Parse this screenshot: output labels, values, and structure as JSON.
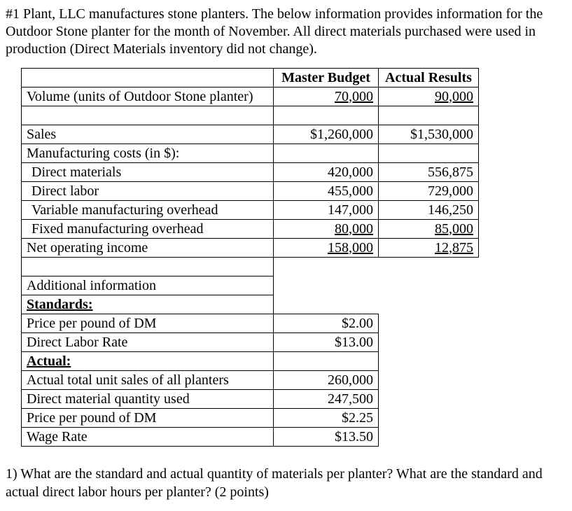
{
  "intro": "#1 Plant, LLC manufactures stone planters. The below information provides information for the Outdoor Stone planter for the month of November. All direct materials purchased were used in production (Direct Materials inventory did not change).",
  "table": {
    "master_budget_header": "Master Budget",
    "actual_results_header": "Actual Results",
    "rows": [
      {
        "label": "Volume (units of Outdoor Stone planter)",
        "budget": "70,000",
        "actual": "90,000"
      },
      {
        "label": "Sales",
        "budget": "$1,260,000",
        "actual": "$1,530,000"
      },
      {
        "label": "Manufacturing costs (in $):",
        "budget": "",
        "actual": ""
      },
      {
        "label": "Direct materials",
        "budget": "420,000",
        "actual": "556,875"
      },
      {
        "label": "Direct labor",
        "budget": "455,000",
        "actual": "729,000"
      },
      {
        "label": "Variable manufacturing overhead",
        "budget": "147,000",
        "actual": "146,250"
      },
      {
        "label": "Fixed manufacturing overhead",
        "budget": "80,000",
        "actual": "85,000"
      },
      {
        "label": "Net operating income",
        "budget": "158,000",
        "actual": "12,875"
      }
    ]
  },
  "additional": {
    "title": "Additional information",
    "standards_label": "Standards:",
    "standards": [
      {
        "label": "Price per pound of DM",
        "value": "$2.00"
      },
      {
        "label": "Direct Labor Rate",
        "value": "$13.00"
      }
    ],
    "actual_label": "Actual:",
    "actual": [
      {
        "label": "Actual total unit sales of all planters",
        "value": "260,000"
      },
      {
        "label": "Direct material quantity used",
        "value": "247,500"
      },
      {
        "label": "Price per pound of DM",
        "value": "$2.25"
      },
      {
        "label": "Wage Rate",
        "value": "$13.50"
      }
    ]
  },
  "question": "1) What are the standard and actual quantity of materials per planter? What are the standard and actual direct labor hours per planter? (2 points)"
}
